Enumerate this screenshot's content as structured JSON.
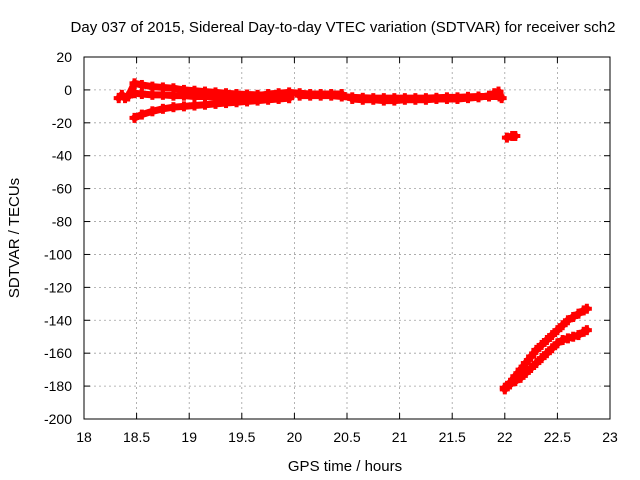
{
  "chart_data": {
    "type": "scatter",
    "title": "Day 037 of 2015, Sidereal Day-to-day VTEC variation (SDTVAR) for receiver sch2",
    "xlabel": "GPS time / hours",
    "ylabel": "SDTVAR / TECUs",
    "xlim": [
      18,
      23
    ],
    "ylim": [
      -200,
      20
    ],
    "xticks": [
      "18",
      "18.5",
      "19",
      "19.5",
      "20",
      "20.5",
      "21",
      "21.5",
      "22",
      "22.5",
      "23"
    ],
    "yticks": [
      "20",
      "0",
      "-20",
      "-40",
      "-60",
      "-80",
      "-100",
      "-120",
      "-140",
      "-160",
      "-180",
      "-200"
    ],
    "grid": true,
    "marker": "plus",
    "series": [
      {
        "color": "#ff0000",
        "points": [
          [
            18.33,
            -5
          ],
          [
            18.36,
            -3
          ],
          [
            18.39,
            -5
          ],
          [
            18.42,
            -4
          ],
          [
            18.48,
            4
          ],
          [
            18.55,
            3
          ],
          [
            18.65,
            2
          ],
          [
            18.75,
            1.5
          ],
          [
            18.85,
            1
          ],
          [
            18.95,
            0
          ],
          [
            19.05,
            -0.5
          ],
          [
            19.15,
            -1
          ],
          [
            19.25,
            -1.5
          ],
          [
            19.35,
            -2
          ],
          [
            19.45,
            -2.5
          ],
          [
            19.55,
            -2.8
          ],
          [
            19.65,
            -3
          ],
          [
            19.75,
            -3.2
          ],
          [
            19.85,
            -3.3
          ],
          [
            19.95,
            -3.5
          ],
          [
            18.48,
            -2
          ],
          [
            18.55,
            -2.5
          ],
          [
            18.65,
            -3
          ],
          [
            18.75,
            -3
          ],
          [
            18.85,
            -3.5
          ],
          [
            18.95,
            -3.5
          ],
          [
            19.05,
            -4
          ],
          [
            19.15,
            -4
          ],
          [
            19.25,
            -4.5
          ],
          [
            19.35,
            -5
          ],
          [
            19.45,
            -5
          ],
          [
            19.55,
            -5
          ],
          [
            19.65,
            -5
          ],
          [
            19.75,
            -5
          ],
          [
            19.85,
            -5
          ],
          [
            19.95,
            -5
          ],
          [
            18.48,
            -17
          ],
          [
            18.55,
            -15
          ],
          [
            18.65,
            -13
          ],
          [
            18.75,
            -11.5
          ],
          [
            18.85,
            -10.5
          ],
          [
            18.95,
            -10
          ],
          [
            19.05,
            -9.5
          ],
          [
            19.15,
            -9
          ],
          [
            19.25,
            -8.5
          ],
          [
            19.35,
            -8
          ],
          [
            19.45,
            -7.5
          ],
          [
            19.55,
            -7
          ],
          [
            19.65,
            -6.5
          ],
          [
            19.75,
            -6
          ],
          [
            19.85,
            -5.5
          ],
          [
            19.95,
            -5
          ],
          [
            19.55,
            -4
          ],
          [
            19.65,
            -3.5
          ],
          [
            19.75,
            -2.5
          ],
          [
            19.85,
            -2
          ],
          [
            19.95,
            -1.5
          ],
          [
            20.05,
            -2
          ],
          [
            20.15,
            -2.5
          ],
          [
            20.25,
            -2.5
          ],
          [
            20.35,
            -2.5
          ],
          [
            20.45,
            -2.5
          ],
          [
            20.05,
            -3.5
          ],
          [
            20.15,
            -3.5
          ],
          [
            20.25,
            -3.5
          ],
          [
            20.35,
            -3.5
          ],
          [
            20.45,
            -4
          ],
          [
            20.55,
            -4.5
          ],
          [
            20.65,
            -4.8
          ],
          [
            20.75,
            -5
          ],
          [
            20.85,
            -5
          ],
          [
            20.95,
            -5
          ],
          [
            21.05,
            -5
          ],
          [
            21.15,
            -5
          ],
          [
            21.25,
            -5
          ],
          [
            21.35,
            -4.8
          ],
          [
            21.45,
            -4.5
          ],
          [
            21.55,
            -4.5
          ],
          [
            21.65,
            -4.2
          ],
          [
            21.75,
            -4
          ],
          [
            21.85,
            -4
          ],
          [
            21.95,
            -4
          ],
          [
            20.55,
            -5.5
          ],
          [
            20.65,
            -6
          ],
          [
            20.75,
            -6
          ],
          [
            20.85,
            -6.5
          ],
          [
            20.95,
            -6.5
          ],
          [
            21.05,
            -6
          ],
          [
            21.15,
            -6
          ],
          [
            21.25,
            -6
          ],
          [
            21.35,
            -5.5
          ],
          [
            21.45,
            -5.5
          ],
          [
            21.55,
            -5.5
          ],
          [
            21.65,
            -5
          ],
          [
            21.75,
            -4.5
          ],
          [
            21.85,
            -3.5
          ],
          [
            21.9,
            -2
          ],
          [
            21.94,
            -1
          ],
          [
            21.97,
            -5
          ],
          [
            22.02,
            -29
          ],
          [
            22.07,
            -28
          ],
          [
            22.1,
            -28
          ],
          [
            22.0,
            -182
          ],
          [
            22.05,
            -178
          ],
          [
            22.1,
            -174
          ],
          [
            22.15,
            -170
          ],
          [
            22.2,
            -166
          ],
          [
            22.25,
            -162
          ],
          [
            22.3,
            -158
          ],
          [
            22.35,
            -155
          ],
          [
            22.4,
            -152
          ],
          [
            22.45,
            -149
          ],
          [
            22.5,
            -146
          ],
          [
            22.55,
            -143
          ],
          [
            22.6,
            -140
          ],
          [
            22.65,
            -138
          ],
          [
            22.7,
            -136
          ],
          [
            22.75,
            -134
          ],
          [
            22.78,
            -133
          ],
          [
            22.0,
            -181
          ],
          [
            22.05,
            -179
          ],
          [
            22.1,
            -177
          ],
          [
            22.15,
            -175
          ],
          [
            22.2,
            -172
          ],
          [
            22.25,
            -169
          ],
          [
            22.3,
            -166
          ],
          [
            22.35,
            -163
          ],
          [
            22.4,
            -160
          ],
          [
            22.45,
            -157
          ],
          [
            22.5,
            -154
          ],
          [
            22.55,
            -152
          ],
          [
            22.6,
            -151
          ],
          [
            22.65,
            -150
          ],
          [
            22.7,
            -149
          ],
          [
            22.75,
            -147
          ],
          [
            22.78,
            -146
          ]
        ]
      }
    ]
  }
}
